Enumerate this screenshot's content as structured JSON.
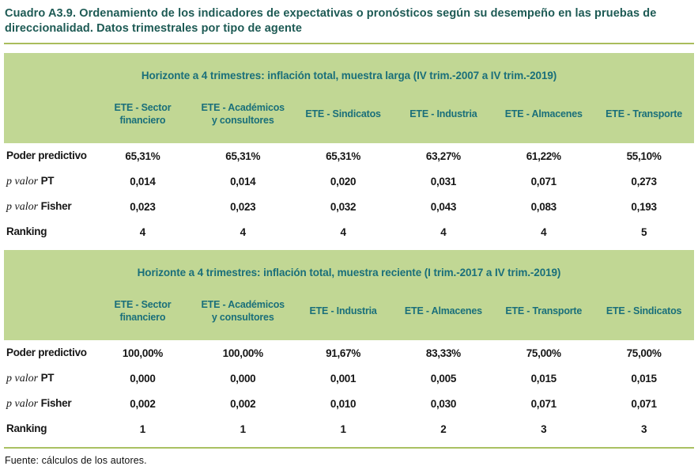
{
  "page": {
    "title": "Cuadro A3.9. Ordenamiento de los indicadores de expectativas o pronósticos según su desempeño en las pruebas de direccionalidad. Datos trimestrales por tipo de agente",
    "source_note": "Fuente: cálculos de los autores."
  },
  "colors": {
    "band_background": "#c1d794",
    "band_text": "#1a6f7a",
    "title_text": "#1d5a54",
    "rule": "#a9bc5c"
  },
  "tables": [
    {
      "section_title": "Horizonte a 4 trimestres: inflación total, muestra larga (IV trim.-2007 a IV trim.-2019)",
      "columns": [
        "ETE - Sector financiero",
        "ETE - Académicos y consultores",
        "ETE - Sindicatos",
        "ETE - Industria",
        "ETE - Almacenes",
        "ETE - Transporte"
      ],
      "rows": [
        {
          "label": "Poder predictivo",
          "values": [
            "65,31%",
            "65,31%",
            "65,31%",
            "63,27%",
            "61,22%",
            "55,10%"
          ]
        },
        {
          "label_italic": "p valor ",
          "label": "PT",
          "values": [
            "0,014",
            "0,014",
            "0,020",
            "0,031",
            "0,071",
            "0,273"
          ]
        },
        {
          "label_italic": "p valor ",
          "label": "Fisher",
          "values": [
            "0,023",
            "0,023",
            "0,032",
            "0,043",
            "0,083",
            "0,193"
          ]
        },
        {
          "label": "Ranking",
          "values": [
            "4",
            "4",
            "4",
            "4",
            "4",
            "5"
          ]
        }
      ]
    },
    {
      "section_title": "Horizonte a 4 trimestres: inflación total, muestra reciente (I trim.-2017 a IV trim.-2019)",
      "columns": [
        "ETE - Sector financiero",
        "ETE - Académicos y consultores",
        "ETE - Industria",
        "ETE - Almacenes",
        "ETE - Transporte",
        "ETE - Sindicatos"
      ],
      "rows": [
        {
          "label": "Poder predictivo",
          "values": [
            "100,00%",
            "100,00%",
            "91,67%",
            "83,33%",
            "75,00%",
            "75,00%"
          ]
        },
        {
          "label_italic": "p valor ",
          "label": "PT",
          "values": [
            "0,000",
            "0,000",
            "0,001",
            "0,005",
            "0,015",
            "0,015"
          ]
        },
        {
          "label_italic": "p valor ",
          "label": "Fisher",
          "values": [
            "0,002",
            "0,002",
            "0,010",
            "0,030",
            "0,071",
            "0,071"
          ]
        },
        {
          "label": "Ranking",
          "values": [
            "1",
            "1",
            "1",
            "2",
            "3",
            "3"
          ]
        }
      ]
    }
  ]
}
